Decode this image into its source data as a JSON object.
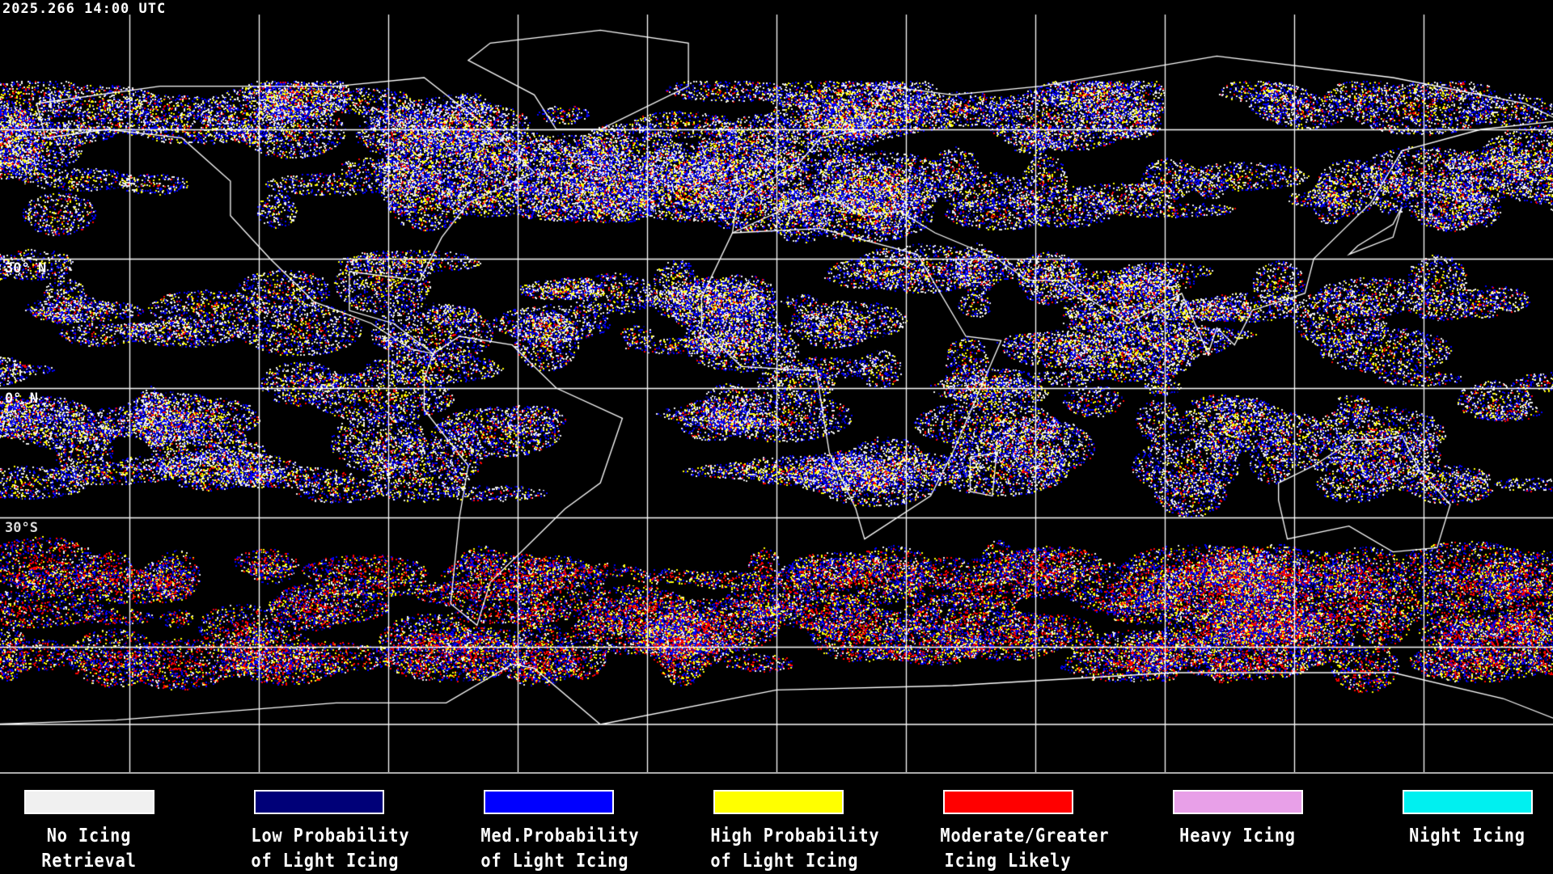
{
  "timestamp": "2025.266 14:00 UTC",
  "latitude_labels": [
    "30° N",
    "0° N",
    "30°S"
  ],
  "legend": [
    {
      "line1": "No Icing",
      "line2": "Retrieval",
      "color": "#f0f0f0"
    },
    {
      "line1": "Low Probability",
      "line2": "of Light Icing",
      "color": "#000078"
    },
    {
      "line1": "Med.Probability",
      "line2": "of Light Icing",
      "color": "#0000ff"
    },
    {
      "line1": "High Probability",
      "line2": "of Light Icing",
      "color": "#ffff00"
    },
    {
      "line1": "Moderate/Greater",
      "line2": "Icing Likely",
      "color": "#ff0000"
    },
    {
      "line1": "Heavy Icing",
      "line2": "",
      "color": "#e8a0e8"
    },
    {
      "line1": "Night Icing",
      "line2": "",
      "color": "#00f0f0"
    }
  ],
  "map": {
    "projection": "equirectangular",
    "grid_spacing_deg": 30,
    "grid_color": "#ffffff",
    "coastline_color": "#ffffff"
  }
}
